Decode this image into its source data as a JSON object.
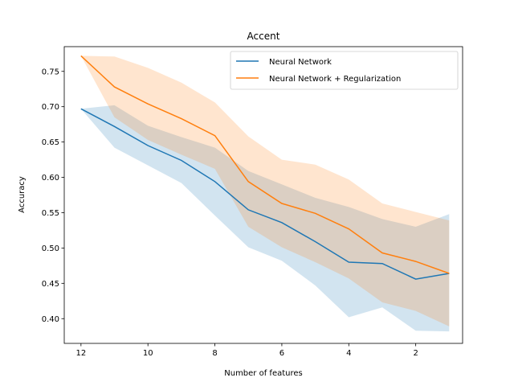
{
  "chart_data": {
    "type": "line",
    "title": "Accent",
    "xlabel": "Number of features",
    "ylabel": "Accuracy",
    "x": [
      12,
      11,
      10,
      9,
      8,
      7,
      6,
      5,
      4,
      3,
      2,
      1
    ],
    "xlim": [
      12.5,
      0.6
    ],
    "ylim": [
      0.365,
      0.785
    ],
    "xticks": [
      12,
      10,
      8,
      6,
      4,
      2
    ],
    "yticks": [
      0.4,
      0.45,
      0.5,
      0.55,
      0.6,
      0.65,
      0.7,
      0.75
    ],
    "xtick_labels": [
      "12",
      "10",
      "8",
      "6",
      "4",
      "2"
    ],
    "ytick_labels": [
      "0.40",
      "0.45",
      "0.50",
      "0.55",
      "0.60",
      "0.65",
      "0.70",
      "0.75"
    ],
    "grid": false,
    "legend_position": "top-right",
    "series": [
      {
        "name": "Neural Network",
        "color": "#1f77b4",
        "values": [
          0.697,
          0.672,
          0.645,
          0.624,
          0.594,
          0.554,
          0.536,
          0.509,
          0.48,
          0.478,
          0.456,
          0.464
        ],
        "upper": [
          0.697,
          0.702,
          0.673,
          0.657,
          0.642,
          0.609,
          0.59,
          0.571,
          0.558,
          0.541,
          0.53,
          0.548
        ],
        "lower": [
          0.697,
          0.642,
          0.617,
          0.592,
          0.546,
          0.501,
          0.482,
          0.447,
          0.402,
          0.416,
          0.383,
          0.382
        ]
      },
      {
        "name": "Neural Network + Regularization",
        "color": "#ff7f0e",
        "values": [
          0.772,
          0.728,
          0.704,
          0.683,
          0.659,
          0.594,
          0.563,
          0.549,
          0.527,
          0.493,
          0.481,
          0.464
        ],
        "upper": [
          0.772,
          0.771,
          0.755,
          0.734,
          0.706,
          0.658,
          0.625,
          0.618,
          0.597,
          0.563,
          0.551,
          0.539
        ],
        "lower": [
          0.772,
          0.685,
          0.653,
          0.632,
          0.612,
          0.53,
          0.501,
          0.48,
          0.457,
          0.423,
          0.411,
          0.389
        ]
      }
    ]
  }
}
